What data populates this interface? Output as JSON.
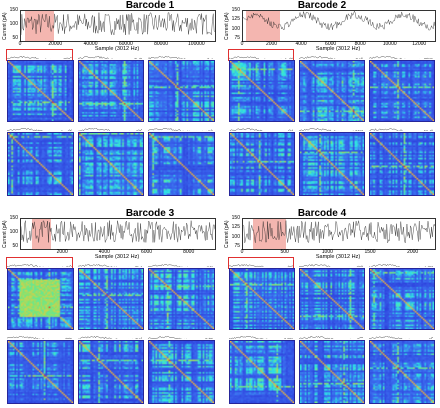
{
  "chart_data": [
    {
      "type": "heatmap",
      "title": "Barcode 1",
      "ylabel": "Current (pA)",
      "xlabel": "Sample (3012 Hz)",
      "yticks": [
        "150",
        "100",
        "50"
      ],
      "xticks": [
        "0",
        "20000",
        "40000",
        "60000",
        "80000",
        "100000"
      ],
      "xlim": [
        0,
        110000
      ],
      "selected_range": [
        2000,
        19000
      ],
      "n_heatmaps": 9
    },
    {
      "type": "heatmap",
      "title": "Barcode 2",
      "ylabel": "Current (pA)",
      "xlabel": "Sample (3012 Hz)",
      "yticks": [
        "150",
        "125",
        "100",
        "75"
      ],
      "xticks": [
        "0",
        "2000",
        "4000",
        "6000",
        "8000",
        "10000",
        "12000"
      ],
      "xlim": [
        0,
        13000
      ],
      "selected_range": [
        200,
        2500
      ],
      "n_heatmaps": 9
    },
    {
      "type": "heatmap",
      "title": "Barcode 3",
      "ylabel": "Current (pA)",
      "xlabel": "Sample (3012 Hz)",
      "yticks": [
        "150",
        "100",
        "50"
      ],
      "xticks": [
        "2000",
        "4000",
        "6000",
        "8000"
      ],
      "xlim": [
        0,
        9200
      ],
      "selected_range": [
        500,
        1400
      ],
      "n_heatmaps": 9
    },
    {
      "type": "heatmap",
      "title": "Barcode 4",
      "ylabel": "Current (pA)",
      "xlabel": "Sample (3012 Hz)",
      "yticks": [
        "150",
        "125",
        "100",
        "75"
      ],
      "xticks": [
        "0",
        "500",
        "1000",
        "1500",
        "2000"
      ],
      "xlim": [
        0,
        2250
      ],
      "selected_range": [
        120,
        500
      ],
      "n_heatmaps": 9
    }
  ],
  "colors": {
    "selection": "#e03030",
    "shade": "#f4b6b0",
    "heat_low": "#2a2ad6",
    "heat_mid": "#2ff0e0",
    "heat_high": "#f04020"
  }
}
